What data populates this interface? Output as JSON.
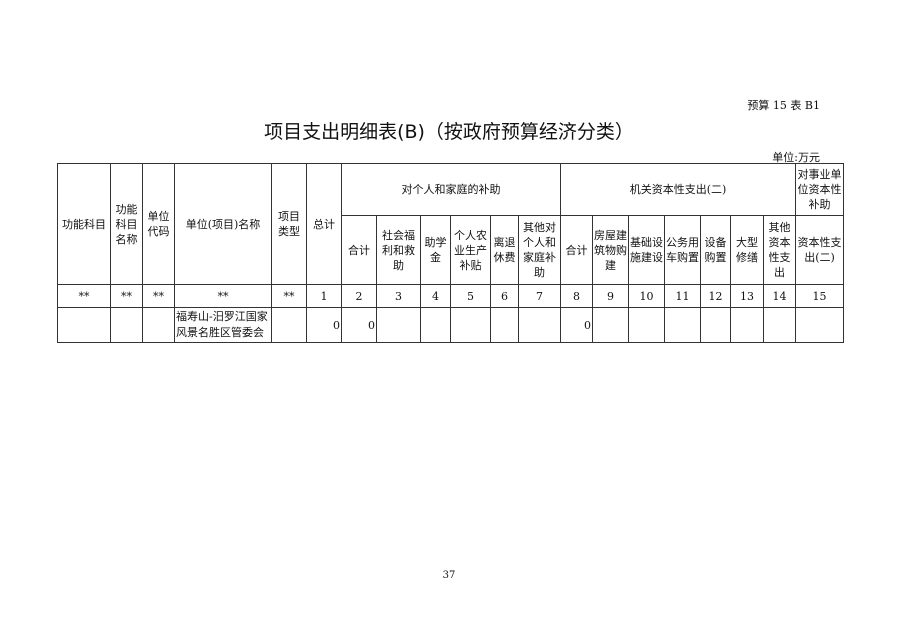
{
  "form_no": "预算 15 表 B1",
  "title": "项目支出明细表(B)（按政府预算经济分类）",
  "unit": "单位:万元",
  "headers": {
    "func_subject": "功能科目",
    "func_subject_name": "功能科目名称",
    "unit_code": "单位代码",
    "unit_project_name": "单位(项目)名称",
    "project_type": "项目类型",
    "total": "总计",
    "group_personal": "对个人和家庭的补助",
    "group_capital": "机关资本性支出(二)",
    "group_enterprise": "对事业单位资本性补助",
    "sub": [
      "合计",
      "社会福利和救助",
      "助学金",
      "个人农业生产补贴",
      "离退休费",
      "其他对个人和家庭补助",
      "合计",
      "房屋建筑物购建",
      "基础设施建设",
      "公务用车购置",
      "设备购置",
      "大型修缮",
      "其他资本性支出",
      "资本性支出(二)"
    ]
  },
  "index_row": [
    "**",
    "**",
    "**",
    "**",
    "**",
    "1",
    "2",
    "3",
    "4",
    "5",
    "6",
    "7",
    "8",
    "9",
    "10",
    "11",
    "12",
    "13",
    "14",
    "15"
  ],
  "rows": [
    {
      "cells": [
        "",
        "",
        "",
        "福寿山-汨罗江国家风景名胜区管委会",
        "",
        "0",
        "0",
        "",
        "",
        "",
        "",
        "",
        "0",
        "",
        "",
        "",
        "",
        "",
        "",
        ""
      ]
    }
  ],
  "page_number": "37"
}
